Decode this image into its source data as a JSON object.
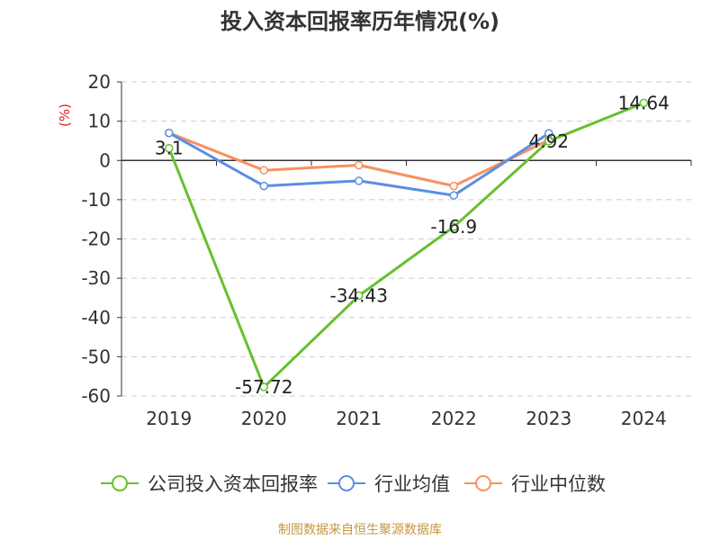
{
  "colors": {
    "company": "#66c02f",
    "industry_avg": "#5b8ee0",
    "industry_median": "#f7915f",
    "grid": "#cccccc",
    "axis": "#333333",
    "unit": "#e02020",
    "source": "#c8963e"
  },
  "chart_data": {
    "type": "line",
    "title": "投入资本回报率历年情况(%)",
    "ylabel": "(%)",
    "xlabel": "",
    "categories": [
      "2019",
      "2020",
      "2021",
      "2022",
      "2023",
      "2024"
    ],
    "ylim": [
      -60,
      20
    ],
    "yticks": [
      20,
      10,
      0,
      -10,
      -20,
      -30,
      -40,
      -50,
      -60
    ],
    "grid": true,
    "legend_position": "bottom",
    "series": [
      {
        "name": "公司投入资本回报率",
        "color_key": "company",
        "values": [
          3.1,
          -57.72,
          -34.43,
          -16.9,
          4.92,
          14.64
        ],
        "labels": [
          "3.1",
          "-57.72",
          "-34.43",
          "-16.9",
          "4.92",
          "14.64"
        ]
      },
      {
        "name": "行业均值",
        "color_key": "industry_avg",
        "values": [
          7,
          -6.5,
          -5.2,
          -8.9,
          6.9,
          null
        ]
      },
      {
        "name": "行业中位数",
        "color_key": "industry_median",
        "values": [
          7,
          -2.5,
          -1.2,
          -6.5,
          5.2,
          null
        ]
      }
    ]
  },
  "footer": {
    "source": "制图数据来自恒生聚源数据库"
  }
}
